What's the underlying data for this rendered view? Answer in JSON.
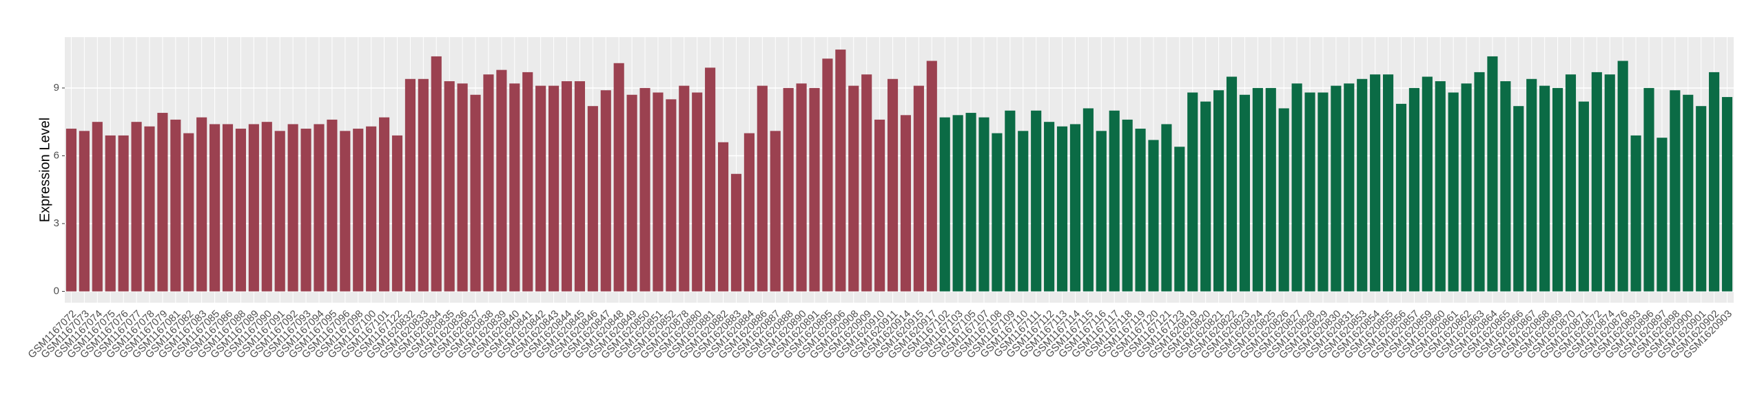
{
  "chart_data": {
    "type": "bar",
    "y_label": "Expression Level",
    "categories": [
      "GSM1167072",
      "GSM1167073",
      "GSM1167074",
      "GSM1167075",
      "GSM1167076",
      "GSM1167077",
      "GSM1167078",
      "GSM1167079",
      "GSM1167081",
      "GSM1167082",
      "GSM1167083",
      "GSM1167085",
      "GSM1167086",
      "GSM1167088",
      "GSM1167089",
      "GSM1167090",
      "GSM1167091",
      "GSM1167092",
      "GSM1167093",
      "GSM1167094",
      "GSM1167095",
      "GSM1167096",
      "GSM1167098",
      "GSM1167100",
      "GSM1167101",
      "GSM1167122",
      "GSM1620832",
      "GSM1620833",
      "GSM1620834",
      "GSM1620835",
      "GSM1620836",
      "GSM1620837",
      "GSM1620838",
      "GSM1620839",
      "GSM1620840",
      "GSM1620841",
      "GSM1620842",
      "GSM1620843",
      "GSM1620844",
      "GSM1620845",
      "GSM1620846",
      "GSM1620847",
      "GSM1620848",
      "GSM1620849",
      "GSM1620850",
      "GSM1620851",
      "GSM1620852",
      "GSM1620878",
      "GSM1620880",
      "GSM1620881",
      "GSM1620882",
      "GSM1620883",
      "GSM1620884",
      "GSM1620886",
      "GSM1620887",
      "GSM1620888",
      "GSM1620890",
      "GSM1620891",
      "GSM1620895",
      "GSM1620906",
      "GSM1620908",
      "GSM1620909",
      "GSM1620910",
      "GSM1620911",
      "GSM1620914",
      "GSM1620915",
      "GSM1620917",
      "GSM1167102",
      "GSM1167103",
      "GSM1167105",
      "GSM1167107",
      "GSM1167108",
      "GSM1167109",
      "GSM1167110",
      "GSM1167111",
      "GSM1167112",
      "GSM1167113",
      "GSM1167114",
      "GSM1167115",
      "GSM1167116",
      "GSM1167117",
      "GSM1167118",
      "GSM1167119",
      "GSM1167120",
      "GSM1167121",
      "GSM1167123",
      "GSM1620819",
      "GSM1620820",
      "GSM1620821",
      "GSM1620822",
      "GSM1620823",
      "GSM1620824",
      "GSM1620825",
      "GSM1620826",
      "GSM1620827",
      "GSM1620828",
      "GSM1620829",
      "GSM1620830",
      "GSM1620831",
      "GSM1620853",
      "GSM1620854",
      "GSM1620855",
      "GSM1620856",
      "GSM1620857",
      "GSM1620859",
      "GSM1620860",
      "GSM1620861",
      "GSM1620862",
      "GSM1620863",
      "GSM1620864",
      "GSM1620865",
      "GSM1620866",
      "GSM1620867",
      "GSM1620868",
      "GSM1620869",
      "GSM1620870",
      "GSM1620871",
      "GSM1620872",
      "GSM1620874",
      "GSM1620876",
      "GSM1620893",
      "GSM1620896",
      "GSM1620897",
      "GSM1620898",
      "GSM1620900",
      "GSM1620901",
      "GSM1620902",
      "GSM1620903"
    ],
    "values": [
      7.2,
      7.1,
      7.5,
      6.9,
      6.9,
      7.5,
      7.3,
      7.9,
      7.6,
      7.0,
      7.7,
      7.4,
      7.4,
      7.2,
      7.4,
      7.5,
      7.1,
      7.4,
      7.2,
      7.4,
      7.6,
      7.1,
      7.2,
      7.3,
      7.7,
      6.9,
      9.4,
      9.4,
      10.4,
      9.3,
      9.2,
      8.7,
      9.6,
      9.8,
      9.2,
      9.7,
      9.1,
      9.1,
      9.3,
      9.3,
      8.2,
      8.9,
      10.1,
      8.7,
      9.0,
      8.8,
      8.5,
      9.1,
      8.8,
      9.9,
      6.6,
      5.2,
      7.0,
      9.1,
      7.1,
      9.0,
      9.2,
      9.0,
      10.3,
      10.7,
      9.1,
      9.6,
      7.6,
      9.4,
      7.8,
      9.1,
      10.2,
      7.7,
      7.8,
      7.9,
      7.7,
      7.0,
      8.0,
      7.1,
      8.0,
      7.5,
      7.3,
      7.4,
      8.1,
      7.1,
      8.0,
      7.6,
      7.2,
      6.7,
      7.4,
      6.4,
      8.8,
      8.4,
      8.9,
      9.5,
      8.7,
      9.0,
      9.0,
      8.1,
      9.2,
      8.8,
      8.8,
      9.1,
      9.2,
      9.4,
      9.6,
      9.6,
      8.3,
      9.0,
      9.5,
      9.3,
      8.8,
      9.2,
      9.7,
      10.4,
      9.3,
      8.2,
      9.4,
      9.1,
      9.0,
      9.6,
      8.4,
      9.7,
      9.6,
      10.2,
      6.9,
      9.0,
      6.8,
      8.9,
      8.7,
      8.2,
      9.7,
      8.6
    ],
    "colors": [
      "#9b4150",
      "#9b4150",
      "#9b4150",
      "#9b4150",
      "#9b4150",
      "#9b4150",
      "#9b4150",
      "#9b4150",
      "#9b4150",
      "#9b4150",
      "#9b4150",
      "#9b4150",
      "#9b4150",
      "#9b4150",
      "#9b4150",
      "#9b4150",
      "#9b4150",
      "#9b4150",
      "#9b4150",
      "#9b4150",
      "#9b4150",
      "#9b4150",
      "#9b4150",
      "#9b4150",
      "#9b4150",
      "#9b4150",
      "#9b4150",
      "#9b4150",
      "#9b4150",
      "#9b4150",
      "#9b4150",
      "#9b4150",
      "#9b4150",
      "#9b4150",
      "#9b4150",
      "#9b4150",
      "#9b4150",
      "#9b4150",
      "#9b4150",
      "#9b4150",
      "#9b4150",
      "#9b4150",
      "#9b4150",
      "#9b4150",
      "#9b4150",
      "#9b4150",
      "#9b4150",
      "#9b4150",
      "#9b4150",
      "#9b4150",
      "#9b4150",
      "#9b4150",
      "#9b4150",
      "#9b4150",
      "#9b4150",
      "#9b4150",
      "#9b4150",
      "#9b4150",
      "#9b4150",
      "#9b4150",
      "#9b4150",
      "#9b4150",
      "#9b4150",
      "#9b4150",
      "#9b4150",
      "#9b4150",
      "#9b4150",
      "#0b6b45",
      "#0b6b45",
      "#0b6b45",
      "#0b6b45",
      "#0b6b45",
      "#0b6b45",
      "#0b6b45",
      "#0b6b45",
      "#0b6b45",
      "#0b6b45",
      "#0b6b45",
      "#0b6b45",
      "#0b6b45",
      "#0b6b45",
      "#0b6b45",
      "#0b6b45",
      "#0b6b45",
      "#0b6b45",
      "#0b6b45",
      "#0b6b45",
      "#0b6b45",
      "#0b6b45",
      "#0b6b45",
      "#0b6b45",
      "#0b6b45",
      "#0b6b45",
      "#0b6b45",
      "#0b6b45",
      "#0b6b45",
      "#0b6b45",
      "#0b6b45",
      "#0b6b45",
      "#0b6b45",
      "#0b6b45",
      "#0b6b45",
      "#0b6b45",
      "#0b6b45",
      "#0b6b45",
      "#0b6b45",
      "#0b6b45",
      "#0b6b45",
      "#0b6b45",
      "#0b6b45",
      "#0b6b45",
      "#0b6b45",
      "#0b6b45",
      "#0b6b45",
      "#0b6b45",
      "#0b6b45",
      "#0b6b45",
      "#0b6b45",
      "#0b6b45",
      "#0b6b45",
      "#0b6b45",
      "#0b6b45",
      "#0b6b45",
      "#0b6b45",
      "#0b6b45",
      "#0b6b45",
      "#0b6b45",
      "#0b6b45",
      "#0b6b45",
      "#0b6b45"
    ],
    "ylim": [
      -0.5,
      11.25
    ],
    "yticks": [
      0,
      3,
      6,
      9
    ],
    "grid": true
  }
}
